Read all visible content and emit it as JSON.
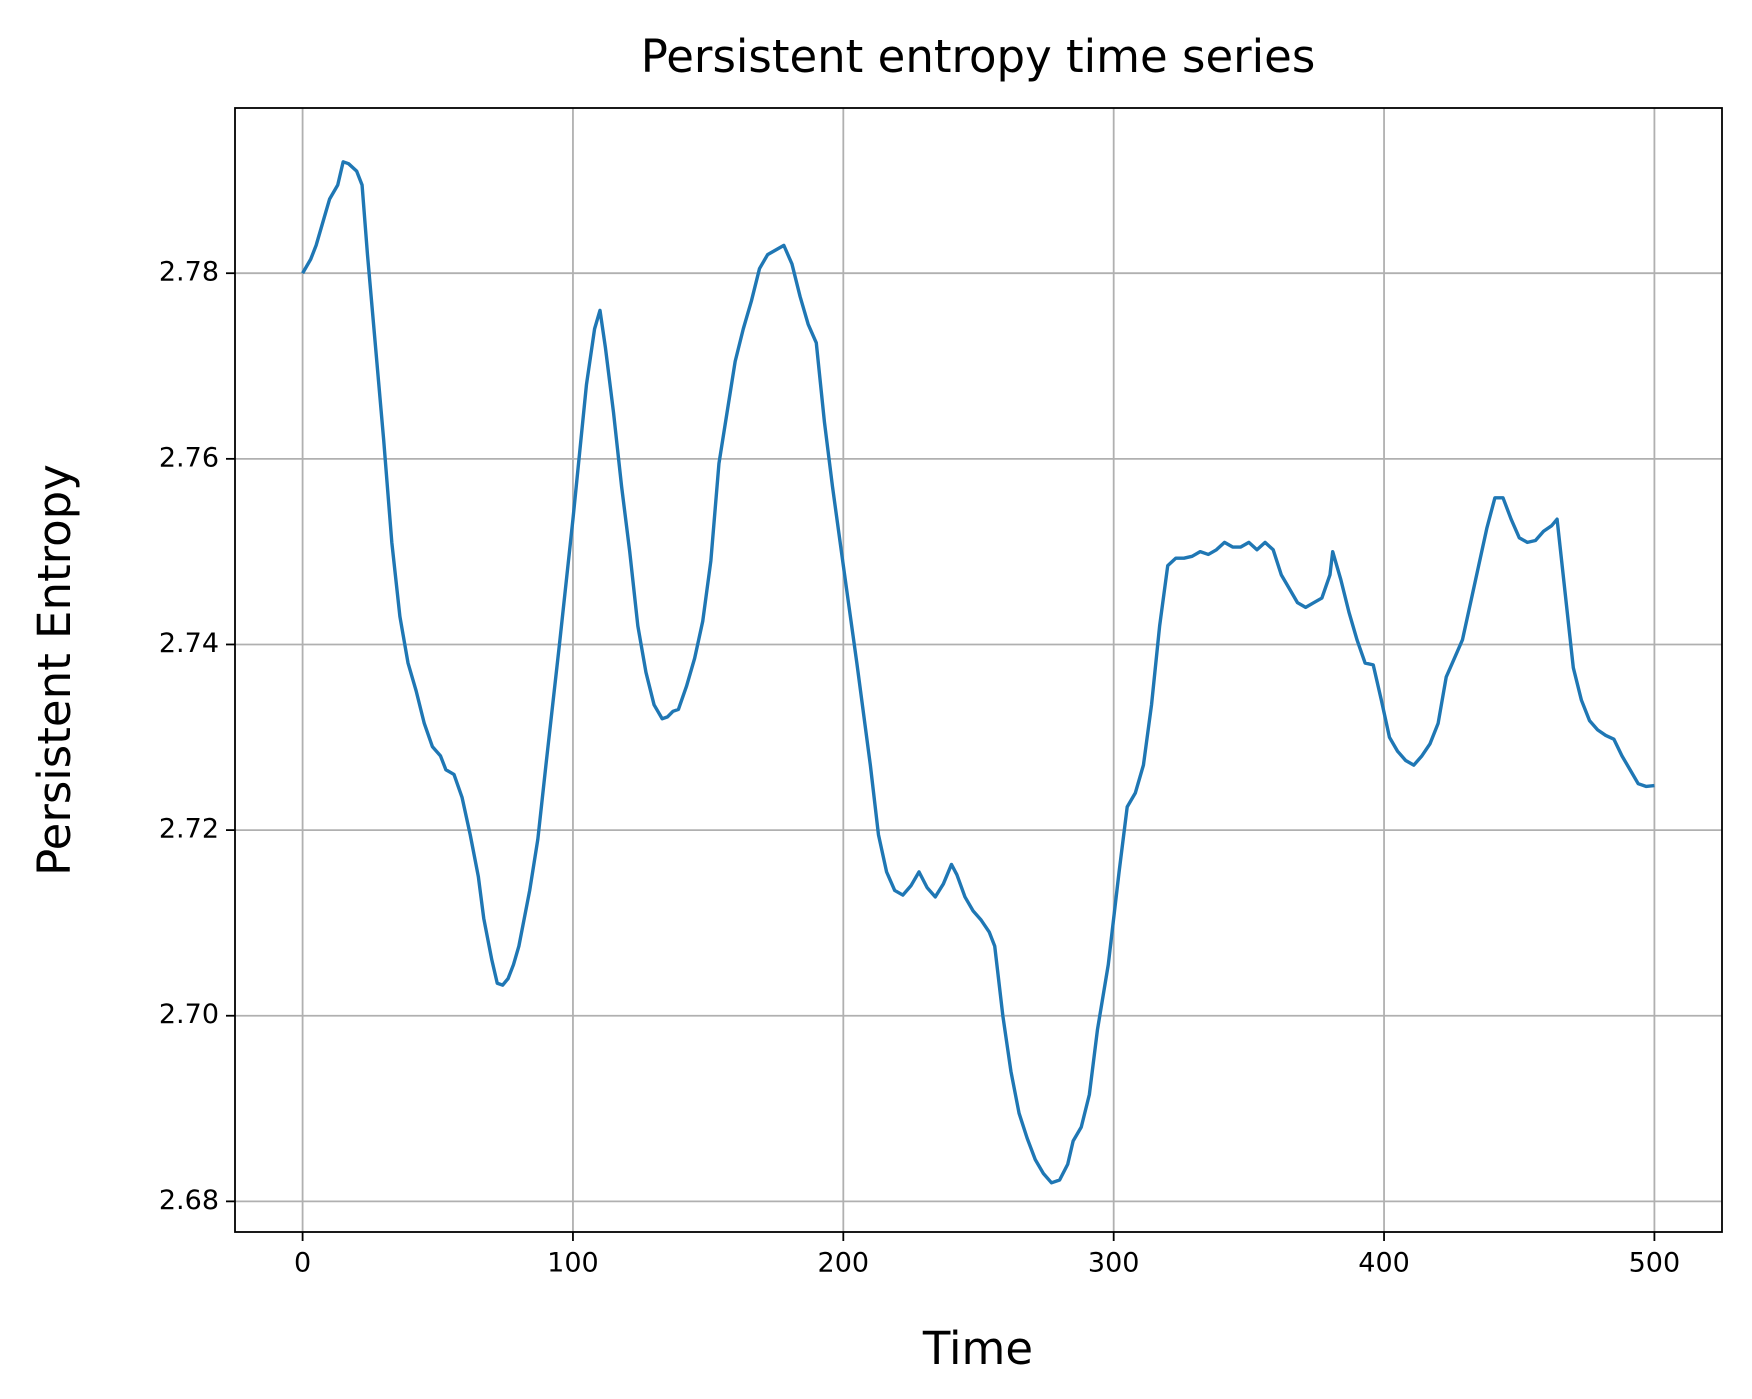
{
  "chart_data": {
    "type": "line",
    "title": "Persistent entropy time series",
    "xlabel": "Time",
    "ylabel": "Persistent Entropy",
    "x": [
      0,
      3,
      5,
      8,
      10,
      13,
      15,
      17,
      20,
      22,
      24,
      27,
      30,
      33,
      36,
      39,
      42,
      45,
      48,
      51,
      53,
      56,
      59,
      62,
      65,
      67,
      70,
      72,
      74,
      76,
      78,
      80,
      82,
      84,
      87,
      90,
      95,
      100,
      105,
      108,
      110,
      112,
      115,
      118,
      121,
      124,
      127,
      130,
      133,
      135,
      137,
      139,
      142,
      145,
      148,
      151,
      154,
      157,
      160,
      163,
      166,
      169,
      172,
      175,
      178,
      181,
      184,
      187,
      190,
      193,
      196,
      200,
      205,
      210,
      213,
      216,
      219,
      222,
      225,
      228,
      231,
      234,
      237,
      240,
      242,
      245,
      248,
      251,
      254,
      256,
      259,
      262,
      265,
      268,
      271,
      274,
      277,
      280,
      283,
      285,
      288,
      291,
      294,
      298,
      302,
      305,
      308,
      311,
      314,
      317,
      320,
      323,
      326,
      329,
      332,
      335,
      338,
      341,
      344,
      347,
      350,
      353,
      356,
      359,
      362,
      365,
      368,
      371,
      374,
      377,
      380,
      381,
      384,
      387,
      390,
      393,
      396,
      399,
      402,
      405,
      408,
      411,
      414,
      417,
      420,
      423,
      426,
      429,
      432,
      435,
      438,
      441,
      444,
      447,
      450,
      453,
      456,
      459,
      462,
      464,
      467,
      470,
      473,
      476,
      479,
      482,
      485,
      488,
      491,
      494,
      497,
      500
    ],
    "series": [
      {
        "name": "Persistent entropy",
        "color": "#1f77b4",
        "values": [
          2.78,
          2.7815,
          2.783,
          2.786,
          2.788,
          2.7895,
          2.792,
          2.7918,
          2.791,
          2.7895,
          2.782,
          2.772,
          2.762,
          2.751,
          2.743,
          2.738,
          2.735,
          2.7315,
          2.729,
          2.728,
          2.7265,
          2.726,
          2.7235,
          2.7195,
          2.715,
          2.7105,
          2.706,
          2.7035,
          2.7033,
          2.704,
          2.7055,
          2.7075,
          2.7105,
          2.7135,
          2.719,
          2.727,
          2.74,
          2.7535,
          2.768,
          2.774,
          2.776,
          2.772,
          2.765,
          2.757,
          2.75,
          2.742,
          2.737,
          2.7335,
          2.732,
          2.7322,
          2.7328,
          2.733,
          2.7355,
          2.7385,
          2.7425,
          2.749,
          2.7595,
          2.765,
          2.7705,
          2.774,
          2.777,
          2.7805,
          2.782,
          2.7825,
          2.783,
          2.781,
          2.7775,
          2.7745,
          2.7725,
          2.764,
          2.757,
          2.7485,
          2.738,
          2.727,
          2.7195,
          2.7155,
          2.7135,
          2.713,
          2.714,
          2.7155,
          2.7138,
          2.7128,
          2.7142,
          2.7163,
          2.7152,
          2.7128,
          2.7113,
          2.7103,
          2.709,
          2.7075,
          2.7,
          2.694,
          2.6895,
          2.6868,
          2.6845,
          2.683,
          2.682,
          2.6823,
          2.684,
          2.6865,
          2.688,
          2.6915,
          2.6985,
          2.7055,
          2.7155,
          2.7225,
          2.724,
          2.727,
          2.7335,
          2.742,
          2.7485,
          2.7493,
          2.7493,
          2.7495,
          2.75,
          2.7497,
          2.7502,
          2.751,
          2.7505,
          2.7505,
          2.751,
          2.7502,
          2.751,
          2.7502,
          2.7475,
          2.746,
          2.7445,
          2.744,
          2.7445,
          2.745,
          2.7475,
          2.75,
          2.747,
          2.7435,
          2.7405,
          2.738,
          2.7378,
          2.734,
          2.73,
          2.7285,
          2.7275,
          2.727,
          2.728,
          2.7293,
          2.7315,
          2.7365,
          2.7385,
          2.7405,
          2.7445,
          2.7485,
          2.7525,
          2.7558,
          2.7558,
          2.7535,
          2.7515,
          2.751,
          2.7512,
          2.7522,
          2.7528,
          2.7535,
          2.7455,
          2.7375,
          2.734,
          2.7318,
          2.7308,
          2.7302,
          2.7298,
          2.728,
          2.7265,
          2.725,
          2.7247,
          2.7248
        ]
      }
    ],
    "xlim": [
      -25,
      525
    ],
    "ylim": [
      2.6767,
      2.7978
    ],
    "xticks": [
      0,
      100,
      200,
      300,
      400,
      500
    ],
    "yticks": [
      2.68,
      {
        "value": 2.7,
        "label": "2.70"
      },
      2.72,
      2.74,
      2.76,
      2.78
    ],
    "grid": true
  }
}
